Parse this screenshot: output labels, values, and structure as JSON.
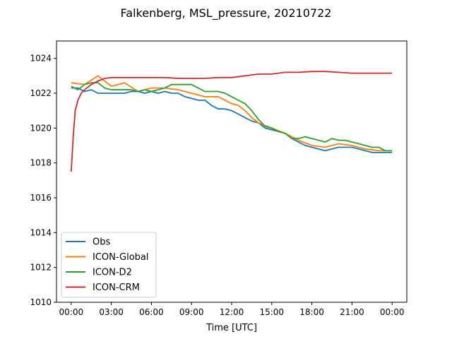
{
  "chart_data": {
    "type": "line",
    "title": "Falkenberg, MSL_pressure, 20210722",
    "xlabel": "Time [UTC]",
    "ylabel": "",
    "xlim": [
      -1.1,
      25.1
    ],
    "ylim": [
      1010,
      1025
    ],
    "x_ticks": [
      0,
      3,
      6,
      9,
      12,
      15,
      18,
      21,
      24
    ],
    "x_tick_labels": [
      "00:00",
      "03:00",
      "06:00",
      "09:00",
      "12:00",
      "15:00",
      "18:00",
      "21:00",
      "00:00"
    ],
    "y_ticks": [
      1010,
      1012,
      1014,
      1016,
      1018,
      1020,
      1022,
      1024
    ],
    "y_tick_labels": [
      "1010",
      "1012",
      "1014",
      "1016",
      "1018",
      "1020",
      "1022",
      "1024"
    ],
    "grid": false,
    "legend_position": "lower-left",
    "series": [
      {
        "name": "Obs",
        "color": "#1f77b4",
        "x": [
          0,
          0.5,
          1.0,
          1.5,
          2.0,
          2.5,
          3.0,
          3.5,
          4.0,
          4.5,
          5.0,
          5.5,
          6.0,
          6.5,
          7.0,
          7.5,
          8.0,
          8.5,
          9.0,
          9.5,
          10.0,
          10.5,
          11.0,
          11.5,
          12.0,
          12.5,
          13.0,
          13.5,
          14.0,
          14.5,
          15.0,
          15.5,
          16.0,
          16.5,
          17.0,
          17.5,
          18.0,
          18.5,
          19.0,
          19.5,
          20.0,
          20.5,
          21.0,
          21.5,
          22.0,
          22.5,
          23.0,
          23.5,
          24.0
        ],
        "y": [
          1022.3,
          1022.3,
          1022.1,
          1022.2,
          1022.0,
          1022.0,
          1022.0,
          1022.0,
          1022.0,
          1022.1,
          1022.1,
          1022.0,
          1022.1,
          1022.0,
          1022.1,
          1022.0,
          1022.0,
          1021.8,
          1021.7,
          1021.6,
          1021.6,
          1021.3,
          1021.1,
          1021.1,
          1021.0,
          1020.8,
          1020.6,
          1020.4,
          1020.3,
          1020.0,
          1019.9,
          1019.8,
          1019.7,
          1019.4,
          1019.2,
          1019.0,
          1018.9,
          1018.8,
          1018.7,
          1018.8,
          1018.9,
          1018.9,
          1018.9,
          1018.8,
          1018.7,
          1018.6,
          1018.6,
          1018.6,
          1018.6
        ]
      },
      {
        "name": "ICON-Global",
        "color": "#ff7f0e",
        "x": [
          0,
          1.0,
          2.0,
          3.0,
          4.0,
          5.0,
          6.0,
          7.0,
          8.0,
          9.0,
          10.0,
          11.0,
          12.0,
          12.5,
          13.0,
          13.5,
          14.0,
          15.0,
          16.0,
          17.0,
          18.0,
          19.0,
          20.0,
          21.0,
          22.0,
          23.0,
          24.0
        ],
        "y": [
          1022.6,
          1022.5,
          1023.0,
          1022.4,
          1022.6,
          1022.1,
          1022.3,
          1022.3,
          1022.2,
          1022.0,
          1021.8,
          1021.8,
          1021.4,
          1021.3,
          1021.0,
          1020.6,
          1020.3,
          1020.0,
          1019.7,
          1019.3,
          1019.0,
          1018.9,
          1019.1,
          1019.0,
          1018.8,
          1018.7,
          1018.7
        ]
      },
      {
        "name": "ICON-D2",
        "color": "#2ca02c",
        "x": [
          0,
          0.5,
          1.0,
          1.5,
          2.0,
          2.5,
          3.0,
          3.5,
          4.0,
          4.5,
          5.0,
          5.5,
          6.0,
          6.5,
          7.0,
          7.5,
          8.0,
          8.5,
          9.0,
          9.5,
          10.0,
          10.5,
          11.0,
          11.5,
          12.0,
          12.5,
          13.0,
          13.5,
          14.0,
          14.5,
          15.0,
          15.5,
          16.0,
          16.5,
          17.0,
          17.5,
          18.0,
          18.5,
          19.0,
          19.5,
          20.0,
          20.5,
          21.0,
          21.5,
          22.0,
          22.5,
          23.0,
          23.5,
          24.0
        ],
        "y": [
          1022.4,
          1022.2,
          1022.5,
          1022.6,
          1022.6,
          1022.3,
          1022.2,
          1022.2,
          1022.2,
          1022.2,
          1022.1,
          1022.2,
          1022.1,
          1022.2,
          1022.3,
          1022.5,
          1022.5,
          1022.5,
          1022.5,
          1022.3,
          1022.1,
          1022.1,
          1022.1,
          1022.0,
          1021.8,
          1021.6,
          1021.4,
          1021.0,
          1020.5,
          1020.1,
          1020.0,
          1019.8,
          1019.7,
          1019.4,
          1019.4,
          1019.5,
          1019.4,
          1019.3,
          1019.2,
          1019.4,
          1019.3,
          1019.3,
          1019.2,
          1019.1,
          1019.0,
          1018.9,
          1018.9,
          1018.7,
          1018.7
        ]
      },
      {
        "name": "ICON-CRM",
        "color": "#d62728",
        "x": [
          0,
          0.15,
          0.3,
          0.5,
          0.75,
          1.0,
          1.5,
          2.0,
          2.5,
          3.0,
          4.0,
          5.0,
          6.0,
          7.0,
          8.0,
          9.0,
          10.0,
          11.0,
          12.0,
          13.0,
          14.0,
          15.0,
          16.0,
          17.0,
          18.0,
          19.0,
          20.0,
          21.0,
          22.0,
          23.0,
          24.0
        ],
        "y": [
          1017.5,
          1019.5,
          1021.0,
          1021.6,
          1022.0,
          1022.2,
          1022.5,
          1022.7,
          1022.85,
          1022.9,
          1022.9,
          1022.9,
          1022.9,
          1022.9,
          1022.85,
          1022.85,
          1022.85,
          1022.9,
          1022.9,
          1023.0,
          1023.1,
          1023.1,
          1023.2,
          1023.2,
          1023.25,
          1023.25,
          1023.2,
          1023.15,
          1023.15,
          1023.15,
          1023.15
        ]
      }
    ]
  }
}
